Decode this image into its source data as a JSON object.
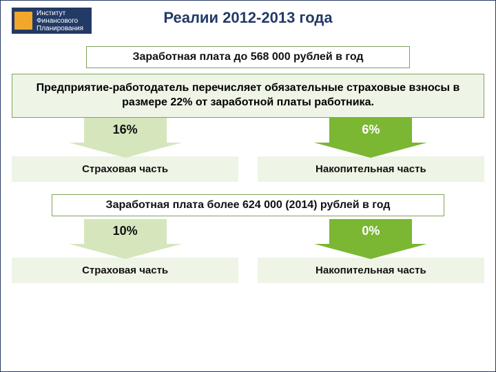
{
  "logo": {
    "line1": "Институт",
    "line2": "Финансового",
    "line3": "Планирования"
  },
  "title": "Реалии 2012-2013 года",
  "salary_below": "Заработная плата до 568 000 рублей  в год",
  "employer_text": "Предприятие-работодатель\nперечисляет обязательные страховые взносы в размере  22% от заработной платы работника.",
  "section1": {
    "left": {
      "pct": "16%",
      "label": "Страховая  часть"
    },
    "right": {
      "pct": "6%",
      "label": "Накопительная часть"
    }
  },
  "salary_above": "Заработная плата более 624 000 (2014) рублей  в год",
  "section2": {
    "left": {
      "pct": "10%",
      "label": "Страховая  часть"
    },
    "right": {
      "pct": "0%",
      "label": "Накопительная часть"
    }
  },
  "colors": {
    "title": "#223a66",
    "border": "#7fa35a",
    "light_fill": "#eef4e6",
    "arrow_light": "#d5e6bd",
    "arrow_dark": "#7bb733",
    "logo_bg": "#223a66",
    "logo_square": "#f2a72b"
  }
}
